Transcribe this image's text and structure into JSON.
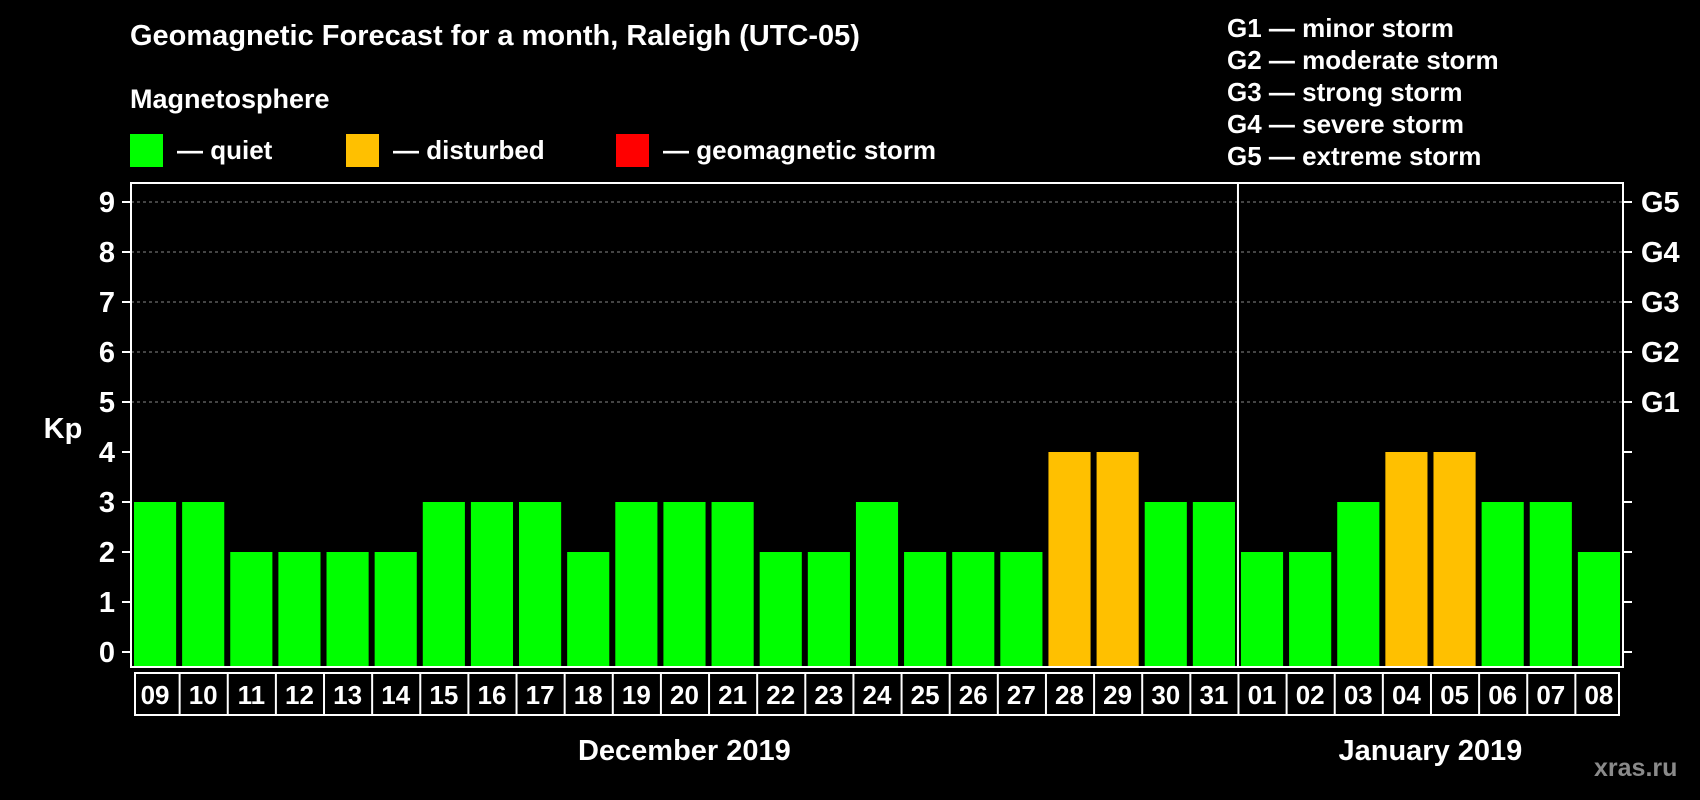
{
  "title": "Geomagnetic Forecast for a month, Raleigh (UTC-05)",
  "subtitle": "Magnetosphere",
  "legend": [
    {
      "label": "— quiet",
      "color": "#00ff00"
    },
    {
      "label": "— disturbed",
      "color": "#ffc000"
    },
    {
      "label": "— geomagnetic storm",
      "color": "#ff0000"
    }
  ],
  "storm_levels": [
    "G1 — minor storm",
    "G2 — moderate storm",
    "G3 — strong storm",
    "G4 — severe storm",
    "G5 — extreme storm"
  ],
  "watermark": "xras.ru",
  "chart_data": {
    "type": "bar",
    "title": "Geomagnetic Forecast for a month, Raleigh (UTC-05)",
    "ylabel": "Kp",
    "ylim": [
      0,
      9
    ],
    "yticks": [
      "0",
      "1",
      "2",
      "3",
      "4",
      "5",
      "6",
      "7",
      "8",
      "9"
    ],
    "right_axis": [
      {
        "kp": 5,
        "label": "G1"
      },
      {
        "kp": 6,
        "label": "G2"
      },
      {
        "kp": 7,
        "label": "G3"
      },
      {
        "kp": 8,
        "label": "G4"
      },
      {
        "kp": 9,
        "label": "G5"
      }
    ],
    "categories": [
      "09",
      "10",
      "11",
      "12",
      "13",
      "14",
      "15",
      "16",
      "17",
      "18",
      "19",
      "20",
      "21",
      "22",
      "23",
      "24",
      "25",
      "26",
      "27",
      "28",
      "29",
      "30",
      "31",
      "01",
      "02",
      "03",
      "04",
      "05",
      "06",
      "07",
      "08"
    ],
    "values": [
      3,
      3,
      2,
      2,
      2,
      2,
      3,
      3,
      3,
      2,
      3,
      3,
      3,
      2,
      2,
      3,
      2,
      2,
      2,
      4,
      4,
      3,
      3,
      2,
      2,
      3,
      4,
      4,
      3,
      3,
      2
    ],
    "colors": {
      "quiet": "#00ff00",
      "disturbed": "#ffc000",
      "storm": "#ff0000"
    },
    "months": [
      {
        "label": "December 2019",
        "start_index": 0,
        "count": 23
      },
      {
        "label": "January 2019",
        "start_index": 23,
        "count": 8
      }
    ]
  }
}
